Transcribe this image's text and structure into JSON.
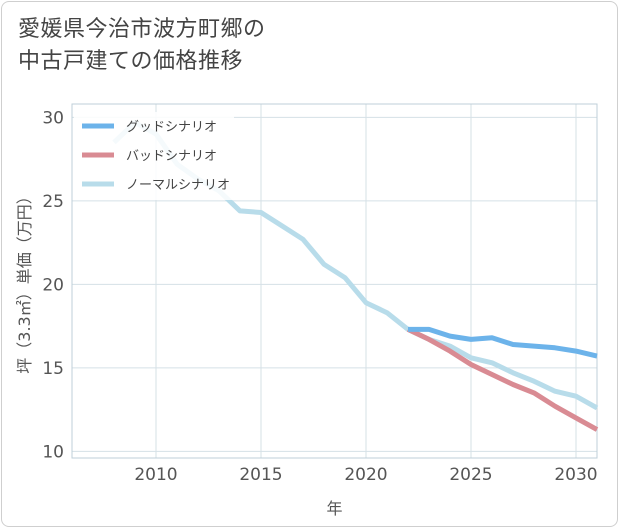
{
  "title_lines": [
    "愛媛県今治市波方町郷の",
    "中古戸建ての価格推移"
  ],
  "chart_data": {
    "type": "line",
    "xlabel": "年",
    "ylabel": "坪（3.3㎡）単価（万円）",
    "xlim": [
      2006,
      2031
    ],
    "ylim": [
      9.6,
      30.8
    ],
    "xticks": [
      2010,
      2015,
      2020,
      2025,
      2030
    ],
    "yticks": [
      10,
      15,
      20,
      25,
      30
    ],
    "grid": true,
    "legend_position": "top-left",
    "series": [
      {
        "name": "グッドシナリオ",
        "color": "#6cb3ea",
        "x": [
          2022,
          2023,
          2024,
          2025,
          2026,
          2027,
          2028,
          2029,
          2030,
          2031
        ],
        "values": [
          17.3,
          17.3,
          16.9,
          16.7,
          16.8,
          16.4,
          16.3,
          16.2,
          16.0,
          15.7
        ]
      },
      {
        "name": "バッドシナリオ",
        "color": "#d98b93",
        "x": [
          2022,
          2023,
          2024,
          2025,
          2026,
          2027,
          2028,
          2029,
          2030,
          2031
        ],
        "values": [
          17.3,
          16.7,
          16.0,
          15.2,
          14.6,
          14.0,
          13.5,
          12.7,
          12.0,
          11.3
        ]
      },
      {
        "name": "ノーマルシナリオ",
        "color": "#b8dcea",
        "x": [
          2008,
          2009,
          2010,
          2011,
          2012,
          2013,
          2014,
          2015,
          2016,
          2017,
          2018,
          2019,
          2020,
          2021,
          2022,
          2023,
          2024,
          2025,
          2026,
          2027,
          2028,
          2029,
          2030,
          2031
        ],
        "values": [
          28.5,
          29.7,
          29.0,
          27.2,
          26.3,
          25.6,
          24.4,
          24.3,
          23.5,
          22.7,
          21.2,
          20.4,
          18.9,
          18.3,
          17.3,
          16.7,
          16.3,
          15.6,
          15.3,
          14.7,
          14.2,
          13.6,
          13.3,
          12.6
        ]
      }
    ]
  }
}
